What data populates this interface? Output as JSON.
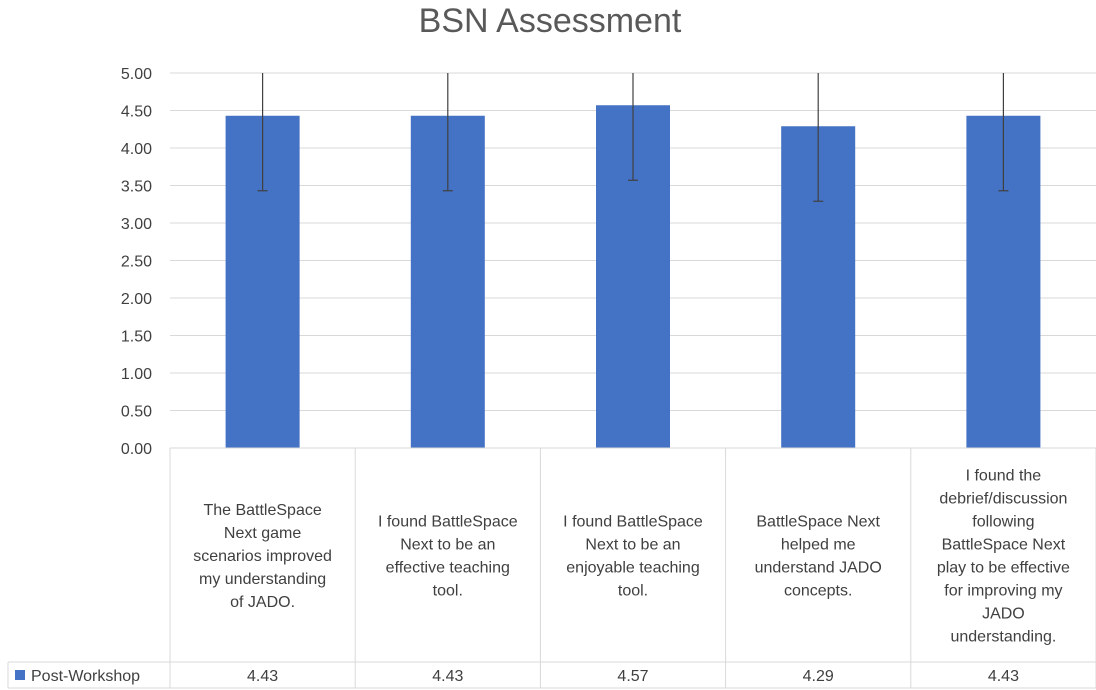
{
  "chart_data": {
    "type": "bar",
    "title": "BSN Assessment",
    "xlabel": "",
    "ylabel": "",
    "ylim": [
      0,
      5
    ],
    "y_ticks": [
      "0.00",
      "0.50",
      "1.00",
      "1.50",
      "2.00",
      "2.50",
      "3.00",
      "3.50",
      "4.00",
      "4.50",
      "5.00"
    ],
    "grid": true,
    "legend_placement": "data-table",
    "categories": [
      [
        "The BattleSpace",
        "Next game",
        "scenarios improved",
        "my understanding",
        "of JADO."
      ],
      [
        "I found BattleSpace",
        "Next to be an",
        "effective teaching",
        "tool."
      ],
      [
        "I found BattleSpace",
        "Next to be an",
        "enjoyable teaching",
        "tool."
      ],
      [
        "BattleSpace Next",
        "helped me",
        "understand JADO",
        "concepts."
      ],
      [
        "I found the",
        "debrief/discussion",
        "following",
        "BattleSpace Next",
        "play to be effective",
        "for improving my",
        "JADO",
        "understanding."
      ]
    ],
    "series": [
      {
        "name": "Post-Workshop",
        "color": "#4472C4",
        "values": [
          4.43,
          4.43,
          4.57,
          4.29,
          4.43
        ],
        "value_labels": [
          "4.43",
          "4.43",
          "4.57",
          "4.29",
          "4.43"
        ],
        "error_low": [
          3.43,
          3.43,
          3.57,
          3.29,
          3.43
        ],
        "error_high": [
          5.0,
          5.0,
          5.0,
          5.0,
          5.0
        ]
      }
    ]
  }
}
